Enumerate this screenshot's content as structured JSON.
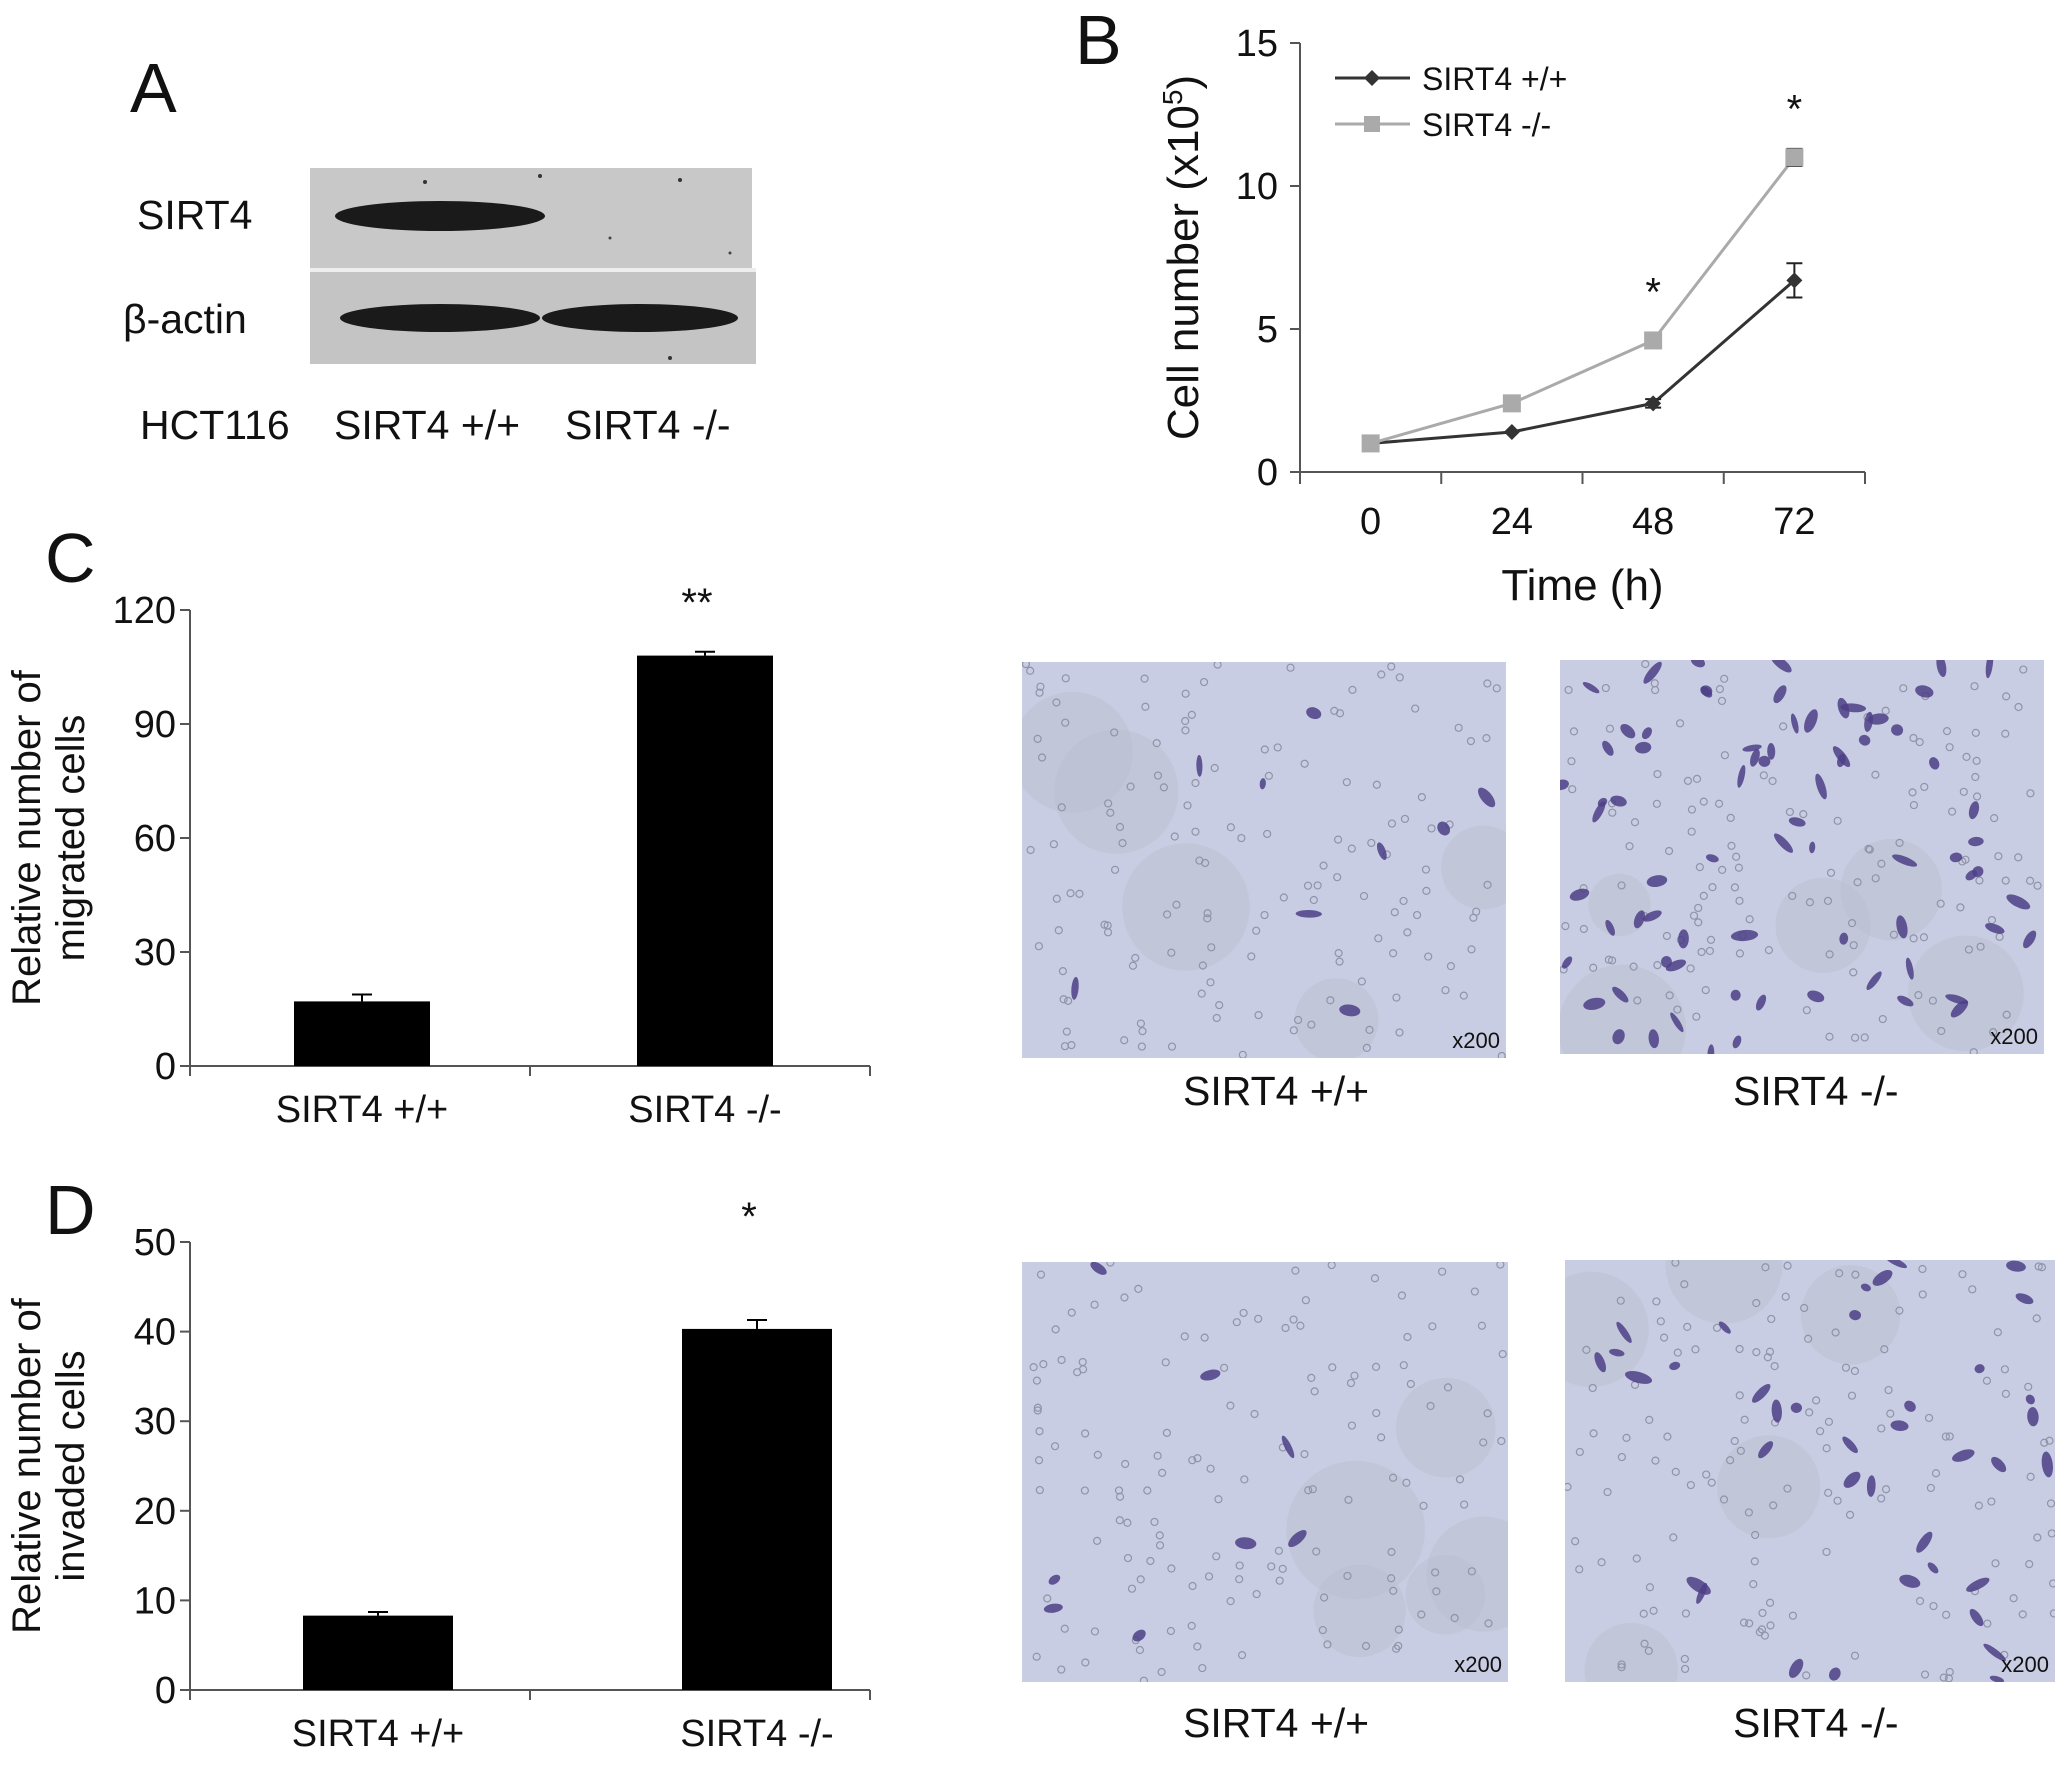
{
  "panels": {
    "a": "A",
    "b": "B",
    "c": "C",
    "d": "D"
  },
  "western_blot": {
    "rows": [
      "SIRT4",
      "β-actin"
    ],
    "cell_line": "HCT116",
    "lanes": [
      "SIRT4 +/+",
      "SIRT4 -/-"
    ]
  },
  "chart_data": [
    {
      "type": "line",
      "xlabel": "Time (h)",
      "ylabel": "Cell number (x10⁵)",
      "ylabel_main": "Cell number (x10",
      "ylabel_exp": "5",
      "ylabel_close": ")",
      "x": [
        0,
        24,
        48,
        72
      ],
      "ylim": [
        0,
        15
      ],
      "yticks": [
        0,
        5,
        10,
        15
      ],
      "legend_position": "top-left",
      "series": [
        {
          "name": "SIRT4 +/+",
          "color": "#333333",
          "marker": "diamond",
          "values": [
            1.0,
            1.4,
            2.4,
            6.7
          ],
          "errors": [
            0.05,
            0.05,
            0.15,
            0.6
          ]
        },
        {
          "name": "SIRT4 -/-",
          "color": "#aaaaaa",
          "marker": "square",
          "values": [
            1.0,
            2.4,
            4.6,
            11.0
          ],
          "errors": [
            0.05,
            0.1,
            0.25,
            0.3
          ]
        }
      ],
      "annotations": [
        {
          "x": 48,
          "text": "*"
        },
        {
          "x": 72,
          "text": "*"
        }
      ]
    },
    {
      "type": "bar",
      "categories": [
        "SIRT4 +/+",
        "SIRT4 -/-"
      ],
      "values": [
        17,
        108
      ],
      "errors": [
        1.8,
        1.0
      ],
      "ylabel_lines": [
        "Relative number of",
        "migrated cells"
      ],
      "ylim": [
        0,
        120
      ],
      "yticks": [
        0,
        30,
        60,
        90,
        120
      ],
      "significance": [
        "",
        "**"
      ],
      "bar_color": "#000000"
    },
    {
      "type": "bar",
      "categories": [
        "SIRT4 +/+",
        "SIRT4 -/-"
      ],
      "values": [
        8.3,
        40.3
      ],
      "errors": [
        0.4,
        1.0
      ],
      "ylabel_lines": [
        "Relative number of",
        "invaded cells"
      ],
      "ylim": [
        0,
        50
      ],
      "yticks": [
        0,
        10,
        20,
        30,
        40,
        50
      ],
      "significance": [
        "",
        "*"
      ],
      "bar_color": "#000000"
    }
  ],
  "micrographs": {
    "migration": [
      {
        "label": "SIRT4 +/+",
        "magnification": "x200"
      },
      {
        "label": "SIRT4 -/-",
        "magnification": "x200"
      }
    ],
    "invasion": [
      {
        "label": "SIRT4 +/+",
        "magnification": "x200"
      },
      {
        "label": "SIRT4 -/-",
        "magnification": "x200"
      }
    ]
  }
}
